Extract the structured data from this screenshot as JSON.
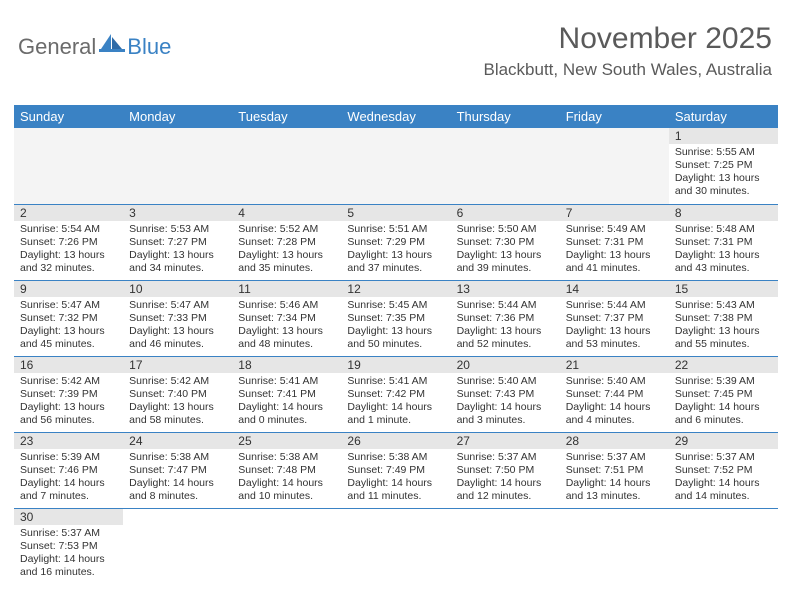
{
  "brand": {
    "part1": "General",
    "part2": "Blue"
  },
  "title": "November 2025",
  "location": "Blackbutt, New South Wales, Australia",
  "colors": {
    "header_bg": "#3a82c4",
    "header_text": "#ffffff",
    "daynum_bg": "#e6e6e6",
    "cell_border": "#3a82c4",
    "body_text": "#333333",
    "logo_gray": "#6b6b6b",
    "logo_blue": "#3a82c4",
    "page_bg": "#ffffff",
    "title_color": "#5a5a5a"
  },
  "dayHeaders": [
    "Sunday",
    "Monday",
    "Tuesday",
    "Wednesday",
    "Thursday",
    "Friday",
    "Saturday"
  ],
  "weeks": [
    [
      null,
      null,
      null,
      null,
      null,
      null,
      {
        "n": "1",
        "sr": "Sunrise: 5:55 AM",
        "ss": "Sunset: 7:25 PM",
        "d1": "Daylight: 13 hours",
        "d2": "and 30 minutes."
      }
    ],
    [
      {
        "n": "2",
        "sr": "Sunrise: 5:54 AM",
        "ss": "Sunset: 7:26 PM",
        "d1": "Daylight: 13 hours",
        "d2": "and 32 minutes."
      },
      {
        "n": "3",
        "sr": "Sunrise: 5:53 AM",
        "ss": "Sunset: 7:27 PM",
        "d1": "Daylight: 13 hours",
        "d2": "and 34 minutes."
      },
      {
        "n": "4",
        "sr": "Sunrise: 5:52 AM",
        "ss": "Sunset: 7:28 PM",
        "d1": "Daylight: 13 hours",
        "d2": "and 35 minutes."
      },
      {
        "n": "5",
        "sr": "Sunrise: 5:51 AM",
        "ss": "Sunset: 7:29 PM",
        "d1": "Daylight: 13 hours",
        "d2": "and 37 minutes."
      },
      {
        "n": "6",
        "sr": "Sunrise: 5:50 AM",
        "ss": "Sunset: 7:30 PM",
        "d1": "Daylight: 13 hours",
        "d2": "and 39 minutes."
      },
      {
        "n": "7",
        "sr": "Sunrise: 5:49 AM",
        "ss": "Sunset: 7:31 PM",
        "d1": "Daylight: 13 hours",
        "d2": "and 41 minutes."
      },
      {
        "n": "8",
        "sr": "Sunrise: 5:48 AM",
        "ss": "Sunset: 7:31 PM",
        "d1": "Daylight: 13 hours",
        "d2": "and 43 minutes."
      }
    ],
    [
      {
        "n": "9",
        "sr": "Sunrise: 5:47 AM",
        "ss": "Sunset: 7:32 PM",
        "d1": "Daylight: 13 hours",
        "d2": "and 45 minutes."
      },
      {
        "n": "10",
        "sr": "Sunrise: 5:47 AM",
        "ss": "Sunset: 7:33 PM",
        "d1": "Daylight: 13 hours",
        "d2": "and 46 minutes."
      },
      {
        "n": "11",
        "sr": "Sunrise: 5:46 AM",
        "ss": "Sunset: 7:34 PM",
        "d1": "Daylight: 13 hours",
        "d2": "and 48 minutes."
      },
      {
        "n": "12",
        "sr": "Sunrise: 5:45 AM",
        "ss": "Sunset: 7:35 PM",
        "d1": "Daylight: 13 hours",
        "d2": "and 50 minutes."
      },
      {
        "n": "13",
        "sr": "Sunrise: 5:44 AM",
        "ss": "Sunset: 7:36 PM",
        "d1": "Daylight: 13 hours",
        "d2": "and 52 minutes."
      },
      {
        "n": "14",
        "sr": "Sunrise: 5:44 AM",
        "ss": "Sunset: 7:37 PM",
        "d1": "Daylight: 13 hours",
        "d2": "and 53 minutes."
      },
      {
        "n": "15",
        "sr": "Sunrise: 5:43 AM",
        "ss": "Sunset: 7:38 PM",
        "d1": "Daylight: 13 hours",
        "d2": "and 55 minutes."
      }
    ],
    [
      {
        "n": "16",
        "sr": "Sunrise: 5:42 AM",
        "ss": "Sunset: 7:39 PM",
        "d1": "Daylight: 13 hours",
        "d2": "and 56 minutes."
      },
      {
        "n": "17",
        "sr": "Sunrise: 5:42 AM",
        "ss": "Sunset: 7:40 PM",
        "d1": "Daylight: 13 hours",
        "d2": "and 58 minutes."
      },
      {
        "n": "18",
        "sr": "Sunrise: 5:41 AM",
        "ss": "Sunset: 7:41 PM",
        "d1": "Daylight: 14 hours",
        "d2": "and 0 minutes."
      },
      {
        "n": "19",
        "sr": "Sunrise: 5:41 AM",
        "ss": "Sunset: 7:42 PM",
        "d1": "Daylight: 14 hours",
        "d2": "and 1 minute."
      },
      {
        "n": "20",
        "sr": "Sunrise: 5:40 AM",
        "ss": "Sunset: 7:43 PM",
        "d1": "Daylight: 14 hours",
        "d2": "and 3 minutes."
      },
      {
        "n": "21",
        "sr": "Sunrise: 5:40 AM",
        "ss": "Sunset: 7:44 PM",
        "d1": "Daylight: 14 hours",
        "d2": "and 4 minutes."
      },
      {
        "n": "22",
        "sr": "Sunrise: 5:39 AM",
        "ss": "Sunset: 7:45 PM",
        "d1": "Daylight: 14 hours",
        "d2": "and 6 minutes."
      }
    ],
    [
      {
        "n": "23",
        "sr": "Sunrise: 5:39 AM",
        "ss": "Sunset: 7:46 PM",
        "d1": "Daylight: 14 hours",
        "d2": "and 7 minutes."
      },
      {
        "n": "24",
        "sr": "Sunrise: 5:38 AM",
        "ss": "Sunset: 7:47 PM",
        "d1": "Daylight: 14 hours",
        "d2": "and 8 minutes."
      },
      {
        "n": "25",
        "sr": "Sunrise: 5:38 AM",
        "ss": "Sunset: 7:48 PM",
        "d1": "Daylight: 14 hours",
        "d2": "and 10 minutes."
      },
      {
        "n": "26",
        "sr": "Sunrise: 5:38 AM",
        "ss": "Sunset: 7:49 PM",
        "d1": "Daylight: 14 hours",
        "d2": "and 11 minutes."
      },
      {
        "n": "27",
        "sr": "Sunrise: 5:37 AM",
        "ss": "Sunset: 7:50 PM",
        "d1": "Daylight: 14 hours",
        "d2": "and 12 minutes."
      },
      {
        "n": "28",
        "sr": "Sunrise: 5:37 AM",
        "ss": "Sunset: 7:51 PM",
        "d1": "Daylight: 14 hours",
        "d2": "and 13 minutes."
      },
      {
        "n": "29",
        "sr": "Sunrise: 5:37 AM",
        "ss": "Sunset: 7:52 PM",
        "d1": "Daylight: 14 hours",
        "d2": "and 14 minutes."
      }
    ],
    [
      {
        "n": "30",
        "sr": "Sunrise: 5:37 AM",
        "ss": "Sunset: 7:53 PM",
        "d1": "Daylight: 14 hours",
        "d2": "and 16 minutes."
      },
      null,
      null,
      null,
      null,
      null,
      null
    ]
  ]
}
